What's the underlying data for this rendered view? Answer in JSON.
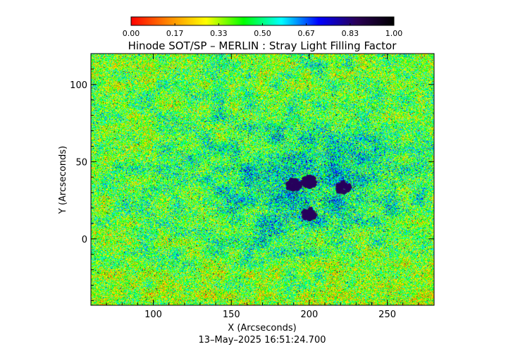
{
  "chart_data": {
    "type": "heatmap",
    "title": "Hinode SOT/SP – MERLIN : Stray Light Filling Factor",
    "xlabel": "X (Arcseconds)",
    "ylabel": "Y (Arcseconds)",
    "timestamp": "13–May–2025 16:51:24.700",
    "xlim": [
      60,
      280
    ],
    "ylim": [
      -43,
      120
    ],
    "xticks": [
      100,
      150,
      200,
      250
    ],
    "yticks": [
      0,
      50,
      100
    ],
    "colorbar": {
      "ticks": [
        "0.00",
        "0.17",
        "0.33",
        "0.50",
        "0.67",
        "0.83",
        "1.00"
      ],
      "range": [
        0,
        1
      ],
      "colors": [
        "#ff0000",
        "#ff8800",
        "#ffff00",
        "#00ff00",
        "#00ffff",
        "#0000ff",
        "#2a0055",
        "#000000"
      ]
    },
    "features": [
      {
        "x": 190,
        "y": 35,
        "value": 0.85
      },
      {
        "x": 200,
        "y": 37,
        "value": 0.85
      },
      {
        "x": 222,
        "y": 33,
        "value": 0.85
      },
      {
        "x": 200,
        "y": 16,
        "value": 0.85
      }
    ]
  }
}
